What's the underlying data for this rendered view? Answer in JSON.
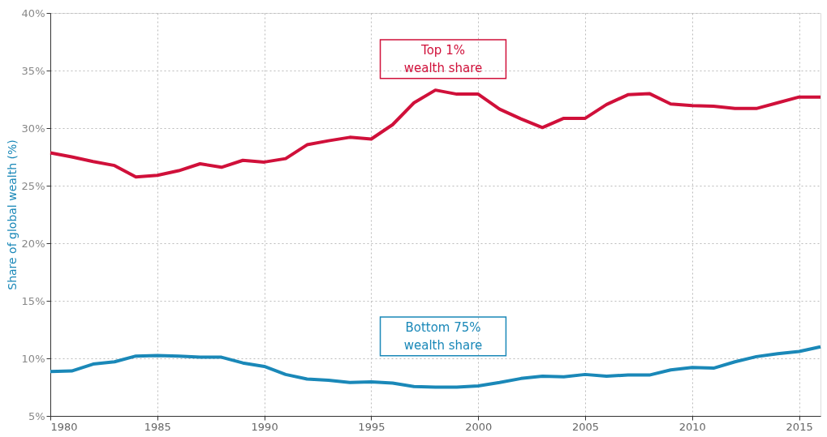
{
  "chart_data": {
    "type": "line",
    "ylabel": "Share of global wealth (%)",
    "x": [
      1980,
      1981,
      1982,
      1983,
      1984,
      1985,
      1986,
      1987,
      1988,
      1989,
      1990,
      1991,
      1992,
      1993,
      1994,
      1995,
      1996,
      1997,
      1998,
      1999,
      2000,
      2001,
      2002,
      2003,
      2004,
      2005,
      2006,
      2007,
      2008,
      2009,
      2010,
      2011,
      2012,
      2013,
      2014,
      2015,
      2016
    ],
    "series": [
      {
        "name": "Top 1% wealth share",
        "color": "#d0103a",
        "values": [
          27.85,
          27.5,
          27.1,
          26.75,
          25.75,
          25.9,
          26.3,
          26.9,
          26.6,
          27.2,
          27.05,
          27.35,
          28.55,
          28.9,
          29.2,
          29.05,
          30.3,
          32.2,
          33.3,
          32.95,
          32.95,
          31.65,
          30.8,
          30.05,
          30.85,
          30.85,
          32.05,
          32.9,
          33.0,
          32.1,
          31.95,
          31.9,
          31.7,
          31.7,
          32.2,
          32.7,
          32.7
        ]
      },
      {
        "name": "Bottom 75% wealth share",
        "color": "#1a88b8",
        "values": [
          8.85,
          8.9,
          9.5,
          9.7,
          10.2,
          10.25,
          10.2,
          10.1,
          10.1,
          9.6,
          9.3,
          8.6,
          8.2,
          8.1,
          7.9,
          7.95,
          7.85,
          7.55,
          7.5,
          7.5,
          7.6,
          7.9,
          8.25,
          8.45,
          8.4,
          8.6,
          8.45,
          8.55,
          8.55,
          9.0,
          9.2,
          9.15,
          9.7,
          10.15,
          10.4,
          10.6,
          11.0
        ]
      }
    ],
    "xlim": [
      1980,
      2016
    ],
    "xticks": [
      1980,
      1985,
      1990,
      1995,
      2000,
      2005,
      2010,
      2015
    ],
    "ylim": [
      5,
      40
    ],
    "yticks": [
      {
        "value": 5,
        "label": "5%"
      },
      {
        "value": 10,
        "label": "10%"
      },
      {
        "value": 15,
        "label": "15%"
      },
      {
        "value": 20,
        "label": "20%"
      },
      {
        "value": 25,
        "label": "25%"
      },
      {
        "value": 30,
        "label": "30%"
      },
      {
        "value": 35,
        "label": "35%"
      },
      {
        "value": 40,
        "label": "40%"
      }
    ],
    "grid": true,
    "marker": "none",
    "line_style": "solid"
  }
}
